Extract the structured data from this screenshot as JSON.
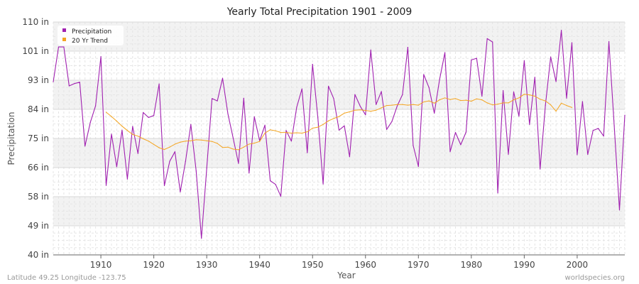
{
  "chart_data": {
    "type": "line",
    "title": "Yearly Total Precipitation 1901 - 2009",
    "xlabel": "Year",
    "ylabel": "Precipitation",
    "xlim": [
      1901,
      2009
    ],
    "ylim": [
      40,
      110
    ],
    "y_ticks": [
      "40 in",
      "49 in",
      "58 in",
      "66 in",
      "75 in",
      "84 in",
      "93 in",
      "101 in",
      "110 in"
    ],
    "y_tick_values": [
      40,
      48.75,
      57.5,
      66.25,
      75,
      83.75,
      92.5,
      101.25,
      110
    ],
    "x_ticks": [
      1910,
      1920,
      1930,
      1940,
      1950,
      1960,
      1970,
      1980,
      1990,
      2000
    ],
    "grid": true,
    "legend_position": "top-left",
    "series": [
      {
        "name": "Precipitation",
        "color": "#a020b0",
        "x": [
          1901,
          1902,
          1903,
          1904,
          1905,
          1906,
          1907,
          1908,
          1909,
          1910,
          1911,
          1912,
          1913,
          1914,
          1915,
          1916,
          1917,
          1918,
          1919,
          1920,
          1921,
          1922,
          1923,
          1924,
          1925,
          1926,
          1927,
          1928,
          1929,
          1930,
          1931,
          1932,
          1933,
          1934,
          1935,
          1936,
          1937,
          1938,
          1939,
          1940,
          1941,
          1942,
          1943,
          1944,
          1945,
          1946,
          1947,
          1948,
          1949,
          1950,
          1951,
          1952,
          1953,
          1954,
          1955,
          1956,
          1957,
          1958,
          1959,
          1960,
          1961,
          1962,
          1963,
          1964,
          1965,
          1966,
          1967,
          1968,
          1969,
          1970,
          1971,
          1972,
          1973,
          1974,
          1975,
          1976,
          1977,
          1978,
          1979,
          1980,
          1981,
          1982,
          1983,
          1984,
          1985,
          1986,
          1987,
          1988,
          1989,
          1990,
          1991,
          1992,
          1993,
          1994,
          1995,
          1996,
          1997,
          1998,
          1999,
          2000,
          2001,
          2002,
          2003,
          2004,
          2005,
          2006,
          2007,
          2008,
          2009
        ],
        "values": [
          92.0,
          102.5,
          102.5,
          90.8,
          91.5,
          91.9,
          72.7,
          79.8,
          84.8,
          99.6,
          60.9,
          76.3,
          66.5,
          77.5,
          62.8,
          78.6,
          70.5,
          82.8,
          81.3,
          81.9,
          91.4,
          60.8,
          68.1,
          71.0,
          58.9,
          68.1,
          79.2,
          65.2,
          45.0,
          66.1,
          87.0,
          86.3,
          93.1,
          82.4,
          75.1,
          67.5,
          87.1,
          64.6,
          81.5,
          74.3,
          79.0,
          62.3,
          61.2,
          57.6,
          77.4,
          74.2,
          84.4,
          89.9,
          70.7,
          97.3,
          81.2,
          61.3,
          90.7,
          87.0,
          77.5,
          78.8,
          69.5,
          88.2,
          84.7,
          82.1,
          101.6,
          85.2,
          89.1,
          77.7,
          80.1,
          84.8,
          88.2,
          102.4,
          72.9,
          66.6,
          94.2,
          90.3,
          82.6,
          92.7,
          100.8,
          71.0,
          76.8,
          73.1,
          76.9,
          98.6,
          99.1,
          87.7,
          105.0,
          104.0,
          58.6,
          89.4,
          70.2,
          89.0,
          81.7,
          98.4,
          79.2,
          93.4,
          65.8,
          85.0,
          99.5,
          92.1,
          107.5,
          87.1,
          103.8,
          70.1,
          86.1,
          70.2,
          77.4,
          78.0,
          75.7,
          104.1,
          78.8,
          53.5,
          82.0
        ]
      },
      {
        "name": "20 Yr Trend",
        "color": "#f4a521",
        "x": [
          1911,
          1912,
          1913,
          1914,
          1915,
          1916,
          1917,
          1918,
          1919,
          1920,
          1921,
          1922,
          1923,
          1924,
          1925,
          1926,
          1927,
          1928,
          1929,
          1930,
          1931,
          1932,
          1933,
          1934,
          1935,
          1936,
          1937,
          1938,
          1939,
          1940,
          1941,
          1942,
          1943,
          1944,
          1945,
          1946,
          1947,
          1948,
          1949,
          1950,
          1951,
          1952,
          1953,
          1954,
          1955,
          1956,
          1957,
          1958,
          1959,
          1960,
          1961,
          1962,
          1963,
          1964,
          1965,
          1966,
          1967,
          1968,
          1969,
          1970,
          1971,
          1972,
          1973,
          1974,
          1975,
          1976,
          1977,
          1978,
          1979,
          1980,
          1981,
          1982,
          1983,
          1984,
          1985,
          1986,
          1987,
          1988,
          1989,
          1990,
          1991,
          1992,
          1993,
          1994,
          1995,
          1996,
          1997,
          1998,
          1999
        ],
        "values": [
          82.9,
          81.6,
          80.2,
          78.7,
          77.4,
          76.2,
          75.7,
          74.9,
          74.2,
          73.2,
          72.2,
          71.7,
          72.4,
          73.3,
          73.9,
          74.2,
          74.3,
          74.6,
          74.5,
          74.3,
          74.1,
          73.5,
          72.3,
          72.4,
          71.8,
          71.6,
          72.4,
          73.3,
          73.6,
          74.1,
          76.6,
          77.6,
          77.3,
          76.8,
          76.8,
          76.6,
          76.7,
          76.6,
          77.0,
          78.1,
          78.4,
          79.2,
          80.3,
          81.0,
          81.6,
          82.6,
          83.0,
          83.5,
          83.6,
          83.4,
          83.2,
          83.5,
          84.2,
          84.9,
          85.0,
          85.2,
          85.2,
          85.0,
          85.2,
          85.0,
          86.0,
          86.3,
          85.6,
          86.6,
          87.2,
          86.7,
          87.0,
          86.4,
          86.5,
          86.2,
          86.9,
          86.6,
          85.7,
          85.1,
          85.3,
          85.7,
          85.7,
          86.6,
          87.2,
          88.3,
          88.1,
          87.7,
          86.8,
          86.3,
          85.1,
          83.2,
          85.6,
          84.9,
          84.3
        ]
      }
    ],
    "footer_left": "Latitude 49.25 Longitude -123.75",
    "footer_right": "worldspecies.org"
  }
}
